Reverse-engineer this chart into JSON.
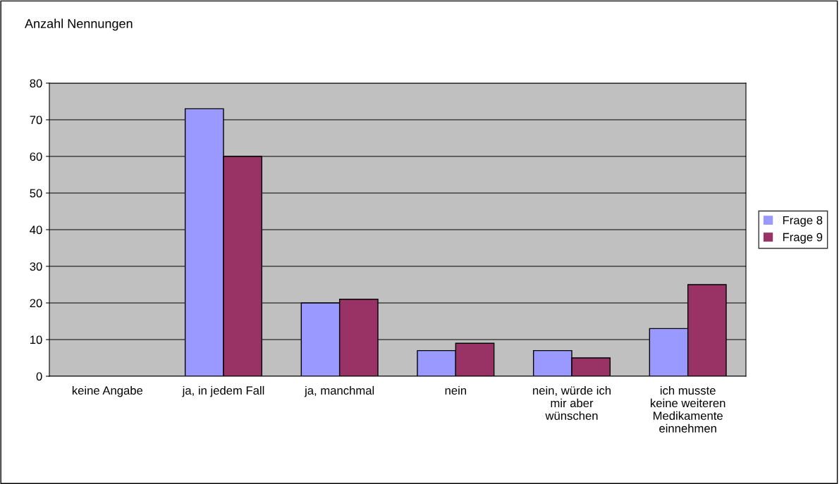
{
  "chart_data": {
    "type": "bar",
    "ylabel": "Anzahl Nennungen",
    "categories": [
      "keine Angabe",
      "ja, in jedem Fall",
      "ja, manchmal",
      "nein",
      "nein, würde ich\nmir aber\nwünschen",
      "ich musste\nkeine weiteren\nMedikamente\neinnehmen"
    ],
    "series": [
      {
        "name": "Frage 8",
        "color": "#9999ff",
        "values": [
          0,
          73,
          20,
          7,
          7,
          13
        ]
      },
      {
        "name": "Frage 9",
        "color": "#993366",
        "values": [
          0,
          60,
          21,
          9,
          5,
          25
        ]
      }
    ],
    "ylim": [
      0,
      80
    ],
    "yticks": [
      0,
      10,
      20,
      30,
      40,
      50,
      60,
      70,
      80
    ],
    "grid": "y",
    "legend": "right"
  }
}
